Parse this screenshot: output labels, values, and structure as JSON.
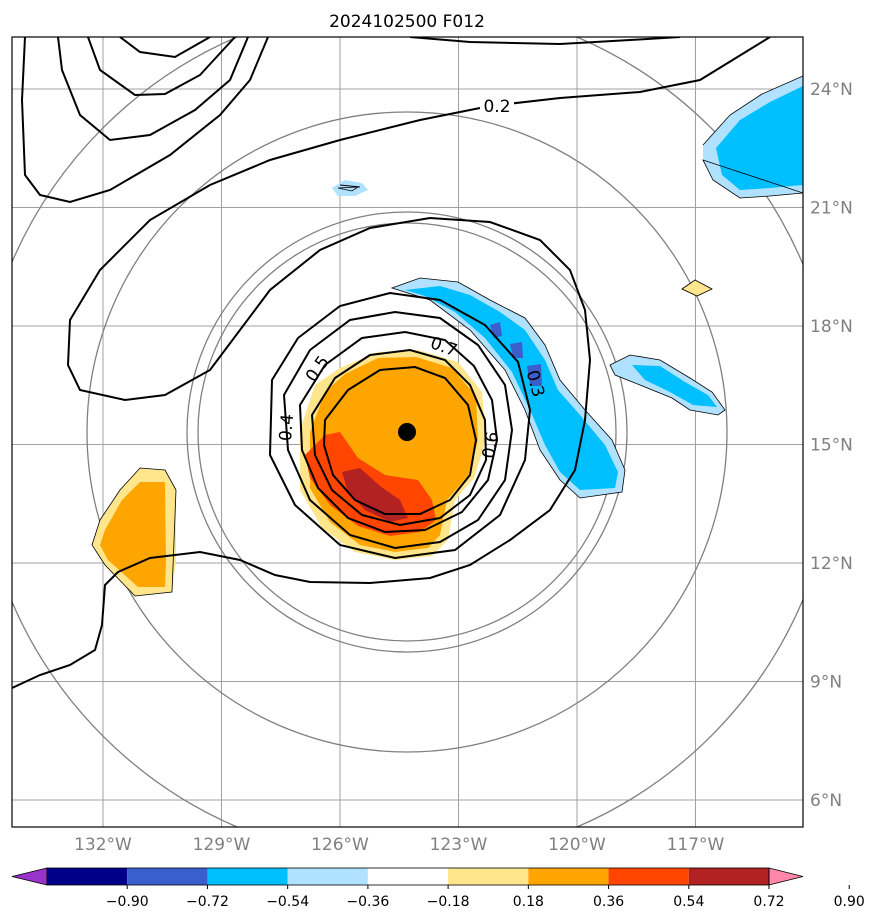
{
  "title": "2024102500 F012",
  "map": {
    "lon_range": [
      -135,
      -115
    ],
    "lat_range": [
      5.3,
      25.3
    ],
    "lon_ticks": [
      {
        "value": -132,
        "label": "132°W"
      },
      {
        "value": -129,
        "label": "129°W"
      },
      {
        "value": -126,
        "label": "126°W"
      },
      {
        "value": -123,
        "label": "123°W"
      },
      {
        "value": -120,
        "label": "120°W"
      },
      {
        "value": -117,
        "label": "117°W"
      }
    ],
    "lat_ticks": [
      {
        "value": 24,
        "label": "24°N"
      },
      {
        "value": 21,
        "label": "21°N"
      },
      {
        "value": 18,
        "label": "18°N"
      },
      {
        "value": 15,
        "label": "15°N"
      },
      {
        "value": 12,
        "label": "12°N"
      },
      {
        "value": 9,
        "label": "9°N"
      },
      {
        "value": 6,
        "label": "6°N"
      }
    ],
    "storm_center": {
      "lon": -124.3,
      "lat": 15.3
    },
    "range_rings_visible": 4,
    "gridlines": true
  },
  "contours": {
    "labels": [
      "0.2",
      "0.3",
      "0.4",
      "0.5",
      "0.6",
      "0.7"
    ],
    "color": "#000000"
  },
  "colorbar": {
    "ticks": [
      "−0.90",
      "−0.72",
      "−0.54",
      "−0.36",
      "−0.18",
      "0.18",
      "0.36",
      "0.54",
      "0.72",
      "0.90"
    ],
    "colors": [
      "#9933cc",
      "#00008b",
      "#3a5fcd",
      "#00bfff",
      "#b0e2ff",
      "#ffffff",
      "#ffe68c",
      "#ffa500",
      "#ff4500",
      "#b22222",
      "#ff88aa"
    ],
    "extend": "both"
  }
}
